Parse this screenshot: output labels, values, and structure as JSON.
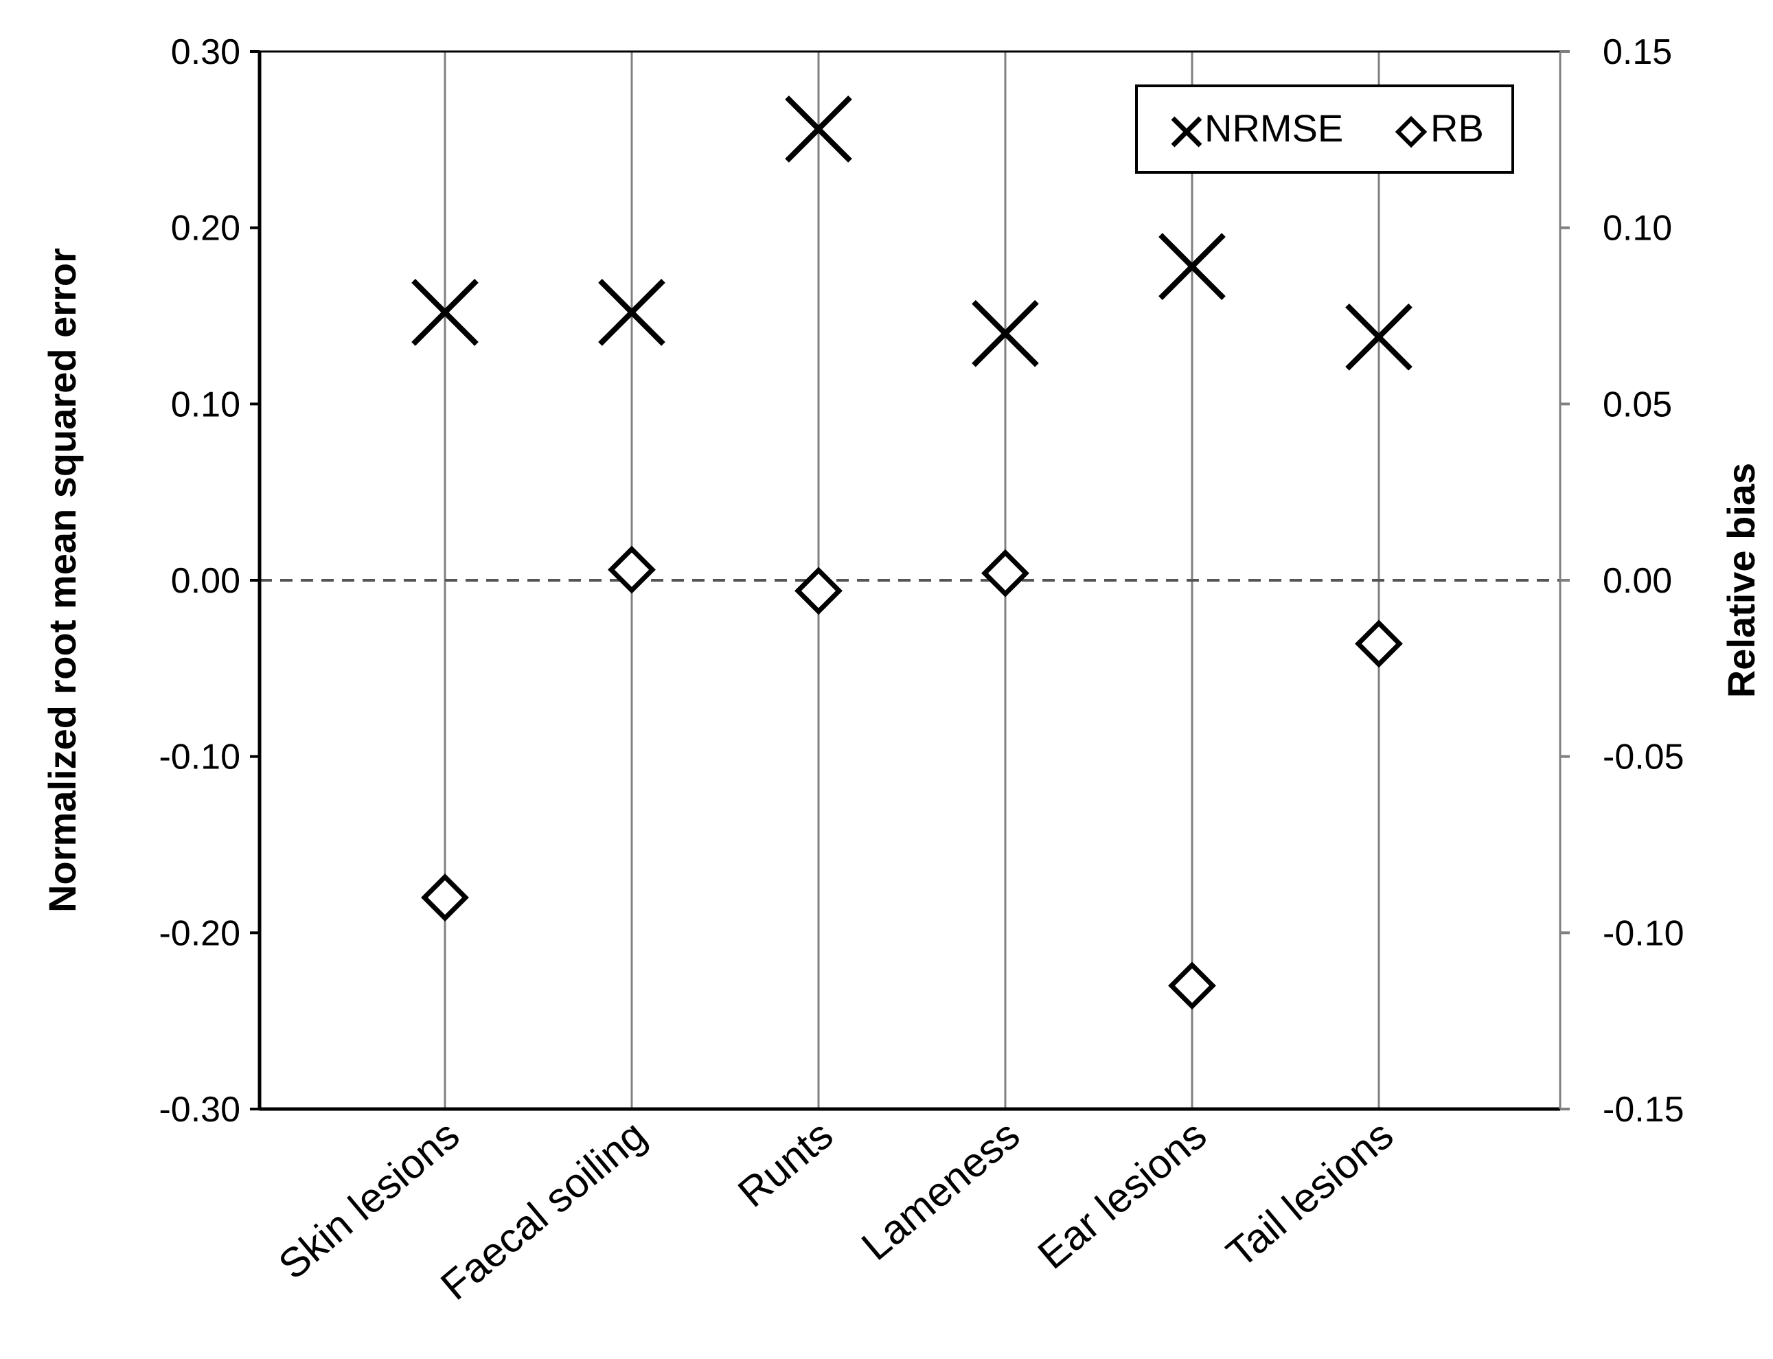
{
  "chart_data": {
    "type": "scatter",
    "categories": [
      "Skin lesions",
      "Faecal soiling",
      "Runts",
      "Lameness",
      "Ear lesions",
      "Tail lesions"
    ],
    "series": [
      {
        "name": "NRMSE",
        "axis": "left",
        "marker": "x",
        "values": [
          0.152,
          0.152,
          0.256,
          0.14,
          0.178,
          0.138
        ]
      },
      {
        "name": "RB",
        "axis": "right",
        "marker": "diamond",
        "values": [
          -0.09,
          0.003,
          -0.003,
          0.002,
          -0.115,
          -0.018
        ]
      }
    ],
    "ylabel": "Normalized root mean squared error",
    "y2label": "Relative bias",
    "ylim": [
      -0.3,
      0.3
    ],
    "y2lim": [
      -0.15,
      0.15
    ],
    "yticks": [
      "-0.30",
      "-0.20",
      "-0.10",
      "0.00",
      "0.10",
      "0.20",
      "0.30"
    ],
    "y2ticks": [
      "-0.15",
      "-0.10",
      "-0.05",
      "0.00",
      "0.05",
      "0.10",
      "0.15"
    ],
    "reference_line": {
      "y": 0,
      "style": "dashed"
    },
    "grid": "vertical category lines",
    "legend": {
      "placement": "top-right",
      "entries": [
        "NRMSE",
        "RB"
      ]
    },
    "colors": {
      "markers": "#000000",
      "gridlines": "#808080",
      "reference": "#555555"
    }
  }
}
